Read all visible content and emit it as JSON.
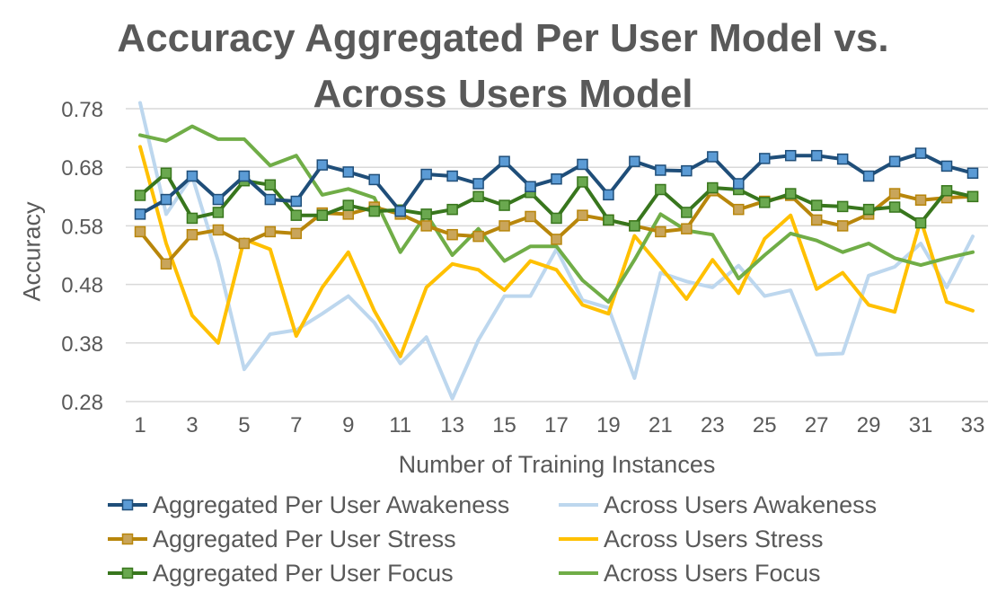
{
  "chart_data": {
    "type": "line",
    "title": [
      "Accuracy Aggregated Per User Model vs.",
      "Across Users Model"
    ],
    "xlabel": "Number of Training Instances",
    "ylabel": "Accuracy",
    "x": [
      1,
      2,
      3,
      4,
      5,
      6,
      7,
      8,
      9,
      10,
      11,
      12,
      13,
      14,
      15,
      16,
      17,
      18,
      19,
      20,
      21,
      22,
      23,
      24,
      25,
      26,
      27,
      28,
      29,
      30,
      31,
      32,
      33
    ],
    "x_tick_labels": [
      "1",
      "3",
      "5",
      "7",
      "9",
      "11",
      "13",
      "15",
      "17",
      "19",
      "21",
      "23",
      "25",
      "27",
      "29",
      "31",
      "33"
    ],
    "ylim": [
      0.26,
      0.8
    ],
    "y_tick_labels": [
      "0.28",
      "0.38",
      "0.48",
      "0.58",
      "0.68",
      "0.78"
    ],
    "y_ticks": [
      0.28,
      0.38,
      0.48,
      0.58,
      0.68,
      0.78
    ],
    "grid": true,
    "legend_position": "bottom",
    "series": [
      {
        "name": "Aggregated Per User Awakeness",
        "color": "#1f4e79",
        "marker_color": "#5b9bd5",
        "markers": true,
        "values": [
          0.6,
          0.625,
          0.665,
          0.625,
          0.665,
          0.625,
          0.622,
          0.684,
          0.672,
          0.659,
          0.605,
          0.668,
          0.665,
          0.652,
          0.69,
          0.647,
          0.66,
          0.685,
          0.633,
          0.69,
          0.675,
          0.674,
          0.698,
          0.652,
          0.695,
          0.7,
          0.7,
          0.694,
          0.665,
          0.69,
          0.704,
          0.682,
          0.67
        ]
      },
      {
        "name": "Across Users Awakeness",
        "color": "#bdd7ee",
        "markers": false,
        "values": [
          0.79,
          0.6,
          0.665,
          0.52,
          0.335,
          0.395,
          0.402,
          0.43,
          0.46,
          0.415,
          0.345,
          0.39,
          0.285,
          0.385,
          0.46,
          0.46,
          0.54,
          0.453,
          0.44,
          0.32,
          0.5,
          0.485,
          0.475,
          0.512,
          0.46,
          0.47,
          0.36,
          0.362,
          0.495,
          0.51,
          0.55,
          0.475,
          0.562
        ]
      },
      {
        "name": "Aggregated Per User Stress",
        "color": "#b8860b",
        "marker_color": "#c9a55a",
        "markers": true,
        "values": [
          0.57,
          0.515,
          0.565,
          0.573,
          0.55,
          0.57,
          0.567,
          0.602,
          0.6,
          0.612,
          0.6,
          0.58,
          0.565,
          0.562,
          0.58,
          0.596,
          0.557,
          0.598,
          0.59,
          0.58,
          0.57,
          0.575,
          0.64,
          0.608,
          0.622,
          0.632,
          0.59,
          0.58,
          0.6,
          0.635,
          0.624,
          0.628,
          0.63
        ]
      },
      {
        "name": "Across Users Stress",
        "color": "#ffc000",
        "markers": false,
        "values": [
          0.715,
          0.55,
          0.427,
          0.38,
          0.557,
          0.54,
          0.392,
          0.475,
          0.535,
          0.435,
          0.357,
          0.475,
          0.515,
          0.505,
          0.47,
          0.52,
          0.505,
          0.445,
          0.43,
          0.563,
          0.51,
          0.455,
          0.522,
          0.465,
          0.558,
          0.598,
          0.472,
          0.5,
          0.445,
          0.433,
          0.59,
          0.45,
          0.435
        ]
      },
      {
        "name": "Aggregated Per User Focus",
        "color": "#38761d",
        "marker_color": "#6aa84f",
        "markers": true,
        "values": [
          0.632,
          0.67,
          0.593,
          0.603,
          0.657,
          0.65,
          0.598,
          0.598,
          0.615,
          0.605,
          0.607,
          0.6,
          0.608,
          0.63,
          0.615,
          0.637,
          0.593,
          0.655,
          0.59,
          0.58,
          0.642,
          0.603,
          0.645,
          0.642,
          0.62,
          0.635,
          0.615,
          0.613,
          0.608,
          0.612,
          0.585,
          0.64,
          0.63
        ]
      },
      {
        "name": "Across Users Focus",
        "color": "#70ad47",
        "markers": false,
        "values": [
          0.735,
          0.725,
          0.75,
          0.728,
          0.728,
          0.683,
          0.7,
          0.633,
          0.643,
          0.628,
          0.535,
          0.6,
          0.53,
          0.575,
          0.52,
          0.545,
          0.545,
          0.487,
          0.45,
          0.522,
          0.6,
          0.572,
          0.565,
          0.49,
          0.53,
          0.567,
          0.555,
          0.535,
          0.55,
          0.525,
          0.513,
          0.525,
          0.535
        ]
      }
    ]
  }
}
